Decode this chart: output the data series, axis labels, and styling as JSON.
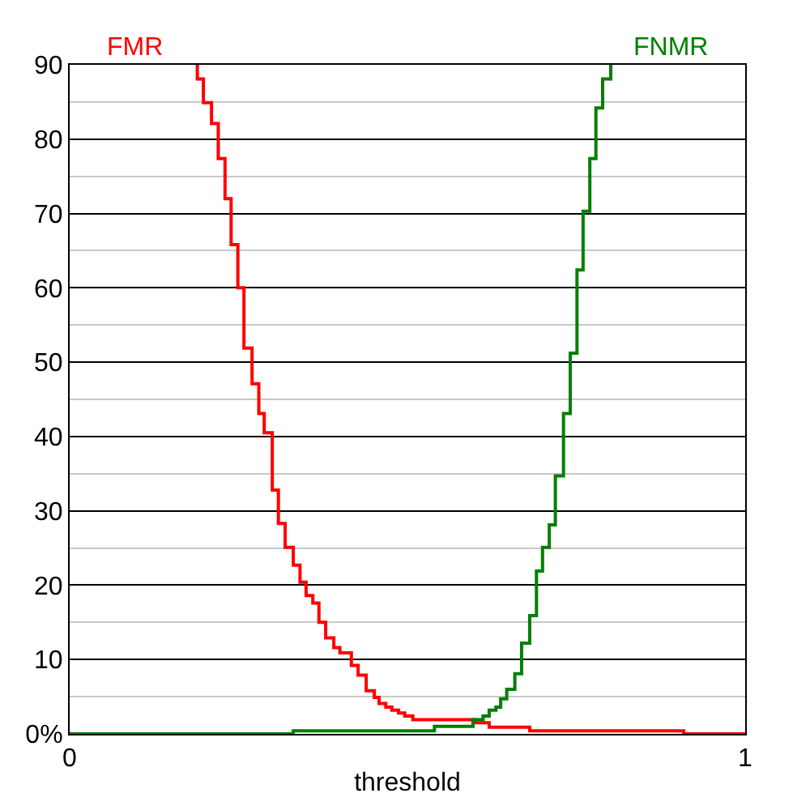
{
  "chart_data": {
    "type": "step",
    "xlabel": "threshold",
    "xlim": [
      0,
      1
    ],
    "xticks": [
      0,
      1
    ],
    "ylim": [
      0,
      90
    ],
    "yticks": [
      {
        "value": 0,
        "label": "0%"
      },
      {
        "value": 5,
        "label": null
      },
      10,
      {
        "value": 15,
        "label": null
      },
      20,
      {
        "value": 25,
        "label": null
      },
      30,
      {
        "value": 35,
        "label": null
      },
      40,
      {
        "value": 45,
        "label": null
      },
      50,
      {
        "value": 55,
        "label": null
      },
      60,
      {
        "value": 65,
        "label": null
      },
      70,
      {
        "value": 75,
        "label": null
      },
      80,
      {
        "value": 85,
        "label": null
      },
      90
    ],
    "grid": "y",
    "legend": false,
    "marker": "none",
    "line_style": "solid",
    "series": [
      {
        "name": "FMR",
        "color": "#ff0000",
        "x": [
          0.189,
          0.189,
          0.198,
          0.21,
          0.22,
          0.23,
          0.239,
          0.249,
          0.258,
          0.27,
          0.28,
          0.288,
          0.3,
          0.309,
          0.319,
          0.331,
          0.341,
          0.35,
          0.36,
          0.369,
          0.379,
          0.391,
          0.4,
          0.417,
          0.427,
          0.439,
          0.451,
          0.458,
          0.468,
          0.477,
          0.487,
          0.496,
          0.508,
          0.6,
          0.621,
          0.681,
          0.909,
          1
        ],
        "values": [
          90,
          88.1,
          84.9,
          82.1,
          77.4,
          72.0,
          65.8,
          60.0,
          51.9,
          47.1,
          43.1,
          40.5,
          32.8,
          28.3,
          25.1,
          22.7,
          20.4,
          18.6,
          17.6,
          15.0,
          12.9,
          11.6,
          10.9,
          9.2,
          7.9,
          5.8,
          4.9,
          4.1,
          3.6,
          3.2,
          2.8,
          2.4,
          1.9,
          1.5,
          0.9,
          0.4,
          0,
          0
        ]
      },
      {
        "name": "FNMR",
        "color": "#008000",
        "x": [
          0,
          0.331,
          0.54,
          0.597,
          0.612,
          0.621,
          0.631,
          0.638,
          0.647,
          0.659,
          0.669,
          0.681,
          0.691,
          0.7,
          0.71,
          0.719,
          0.731,
          0.741,
          0.751,
          0.76,
          0.77,
          0.779,
          0.789,
          0.801
        ],
        "values": [
          0,
          0.4,
          1.0,
          1.9,
          2.4,
          3.2,
          3.6,
          4.7,
          6.0,
          8.1,
          12.2,
          15.9,
          21.9,
          25.1,
          28.1,
          34.7,
          43.1,
          51.2,
          62.4,
          70.3,
          77.4,
          84.2,
          88.1,
          90
        ]
      }
    ]
  }
}
